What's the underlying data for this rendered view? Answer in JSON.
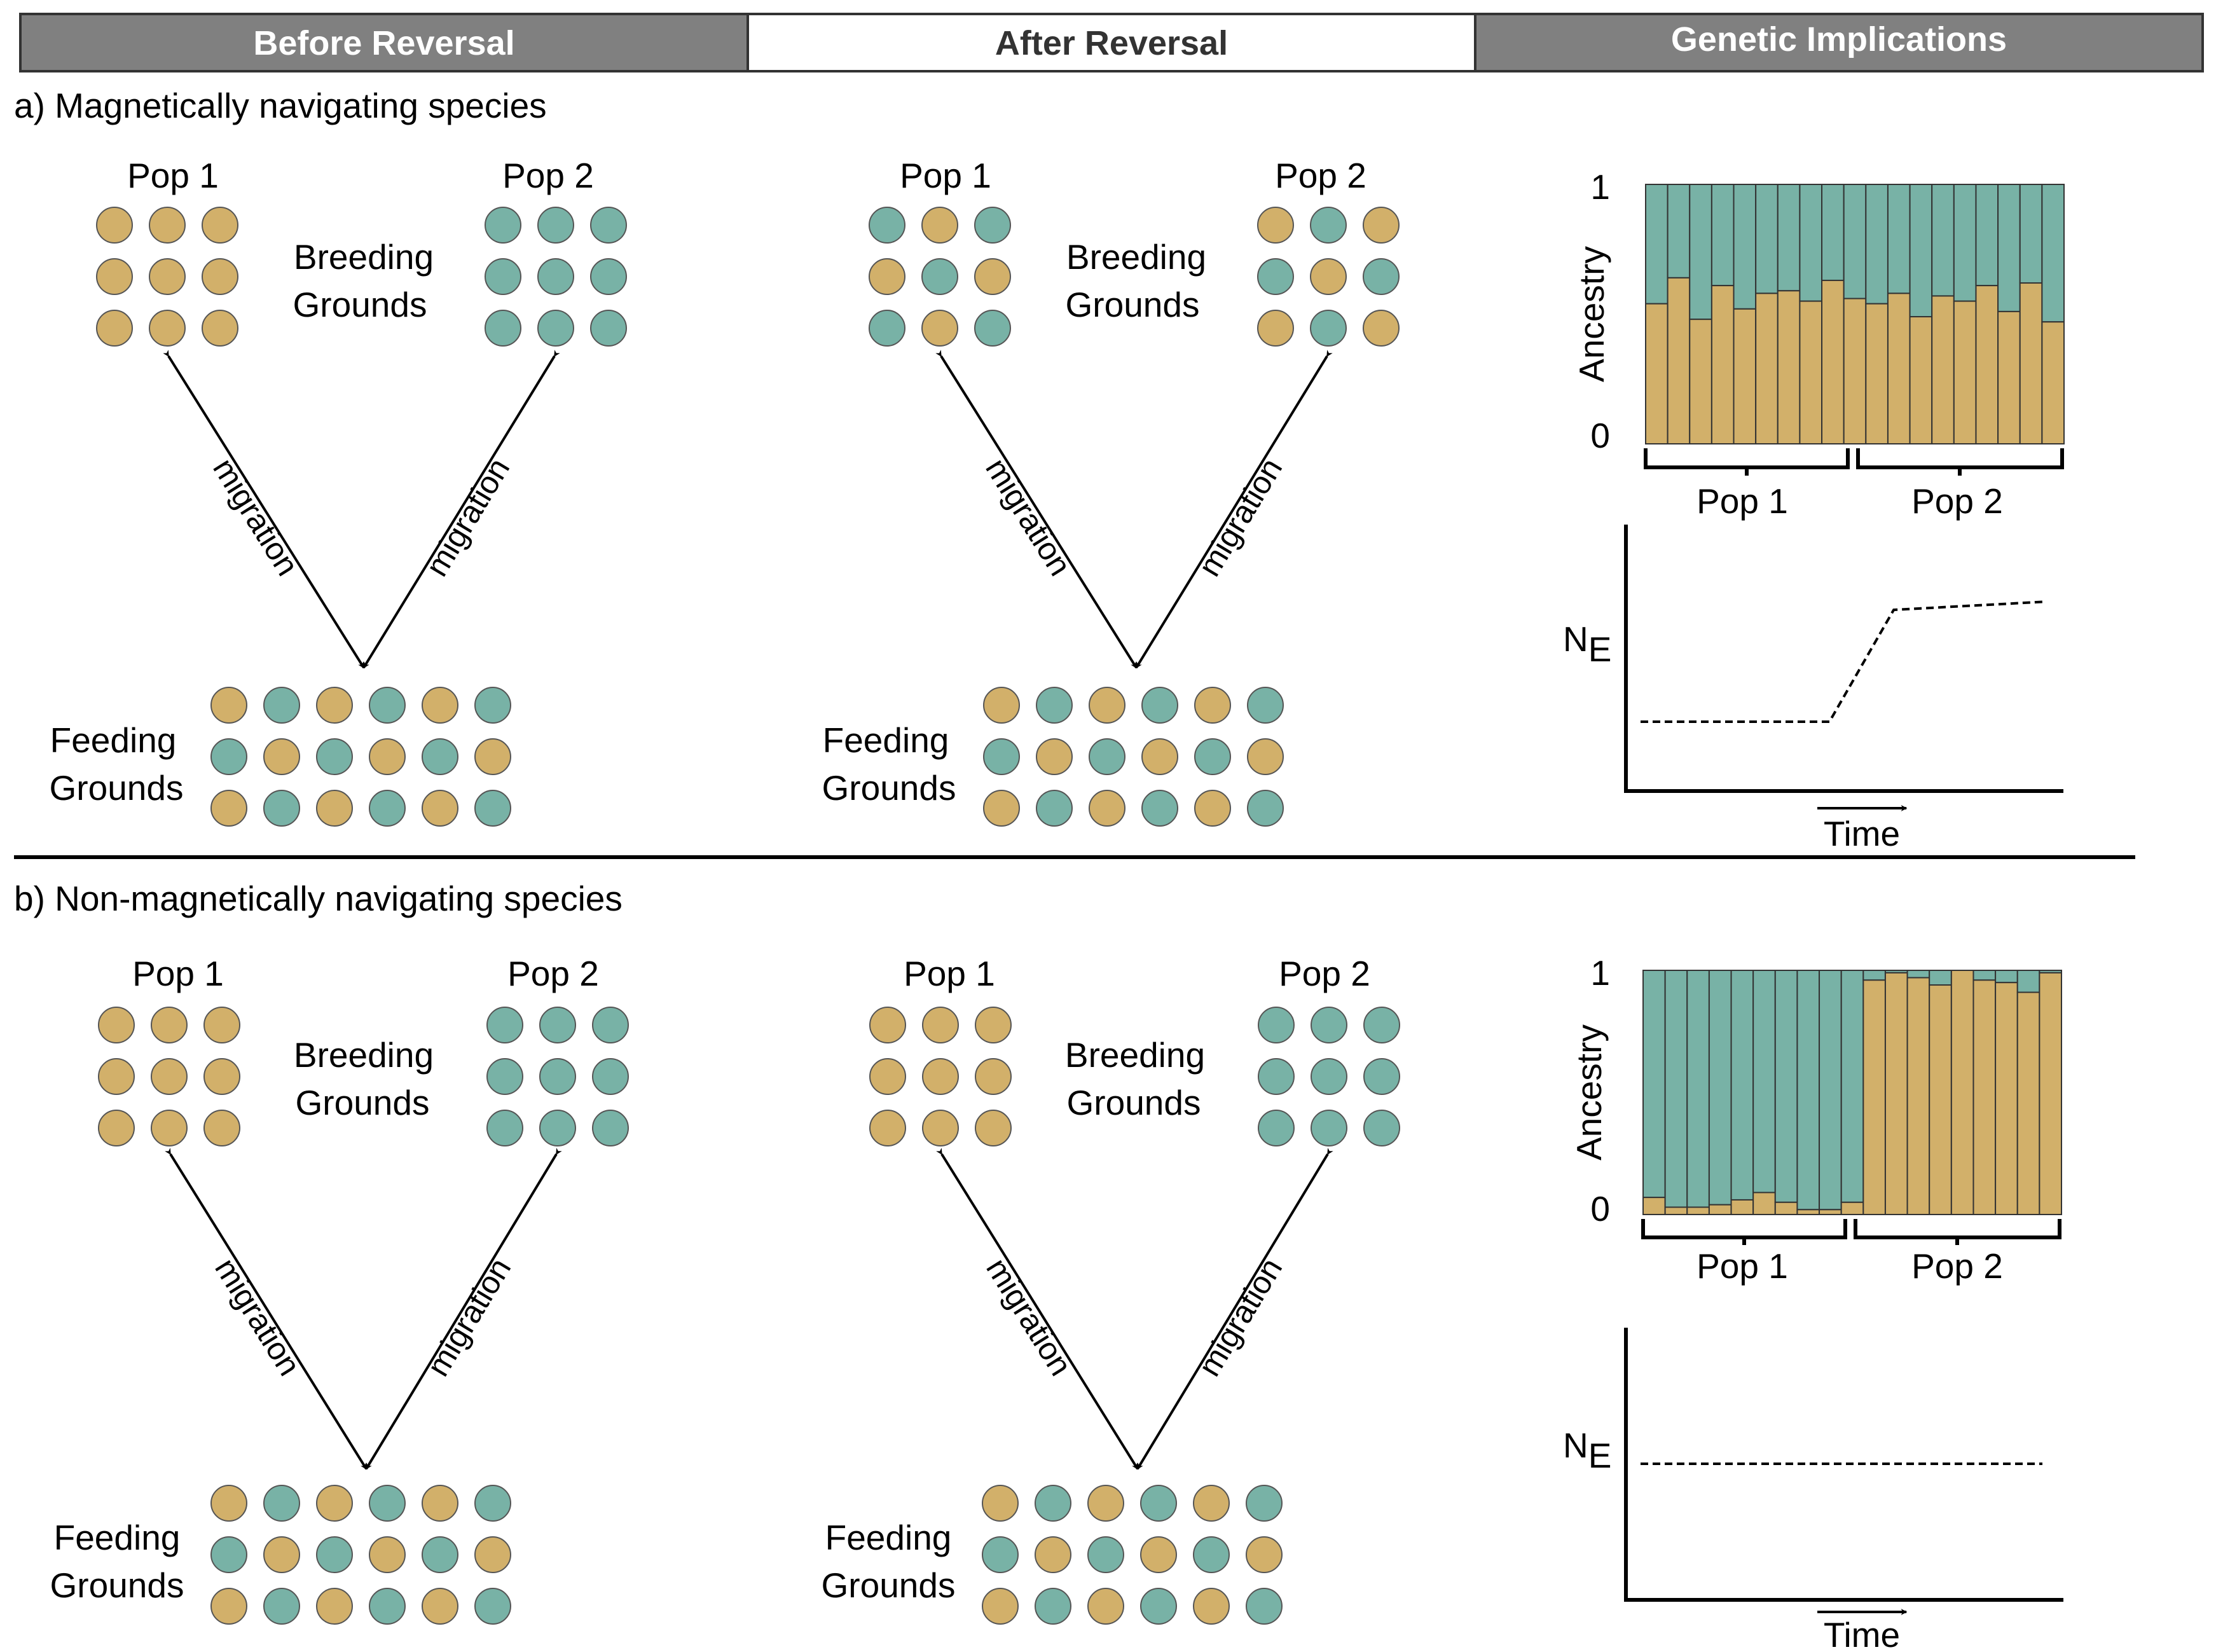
{
  "headers": [
    "Before Reversal",
    "After Reversal",
    "Genetic Implications"
  ],
  "colors": {
    "gold": "#D2B06A",
    "teal": "#78B2A6",
    "header_dark": "#808080",
    "header_light": "#ffffff",
    "stroke": "#555555"
  },
  "labels": {
    "pop1": "Pop 1",
    "pop2": "Pop 2",
    "breeding": [
      "Breeding",
      "Grounds"
    ],
    "feeding": [
      "Feeding",
      "Grounds"
    ],
    "migration": "migration",
    "ancestry": "Ancestry",
    "ne_main": "N",
    "ne_sub": "E",
    "time": "Time",
    "tick_one": "1",
    "tick_zero": "0"
  },
  "panels": [
    {
      "label": "a)  Magnetically navigating species",
      "before": {
        "pop1": [
          "g",
          "g",
          "g",
          "g",
          "g",
          "g",
          "g",
          "g",
          "g"
        ],
        "pop2": [
          "t",
          "t",
          "t",
          "t",
          "t",
          "t",
          "t",
          "t",
          "t"
        ],
        "feeding": [
          "g",
          "t",
          "g",
          "t",
          "g",
          "t",
          "t",
          "g",
          "t",
          "g",
          "t",
          "g",
          "g",
          "t",
          "g",
          "t",
          "g",
          "t"
        ]
      },
      "after": {
        "pop1": [
          "t",
          "g",
          "t",
          "g",
          "t",
          "g",
          "t",
          "g",
          "t"
        ],
        "pop2": [
          "g",
          "t",
          "g",
          "t",
          "g",
          "t",
          "g",
          "t",
          "g"
        ],
        "feeding": [
          "g",
          "t",
          "g",
          "t",
          "g",
          "t",
          "t",
          "g",
          "t",
          "g",
          "t",
          "g",
          "g",
          "t",
          "g",
          "t",
          "g",
          "t"
        ]
      },
      "chart_data": {
        "type": "bar",
        "ylabel": "Ancestry",
        "ylim": [
          0,
          1
        ],
        "yticks": [
          "0",
          "1"
        ],
        "groups": [
          "Pop 1",
          "Pop 2"
        ],
        "series": [
          {
            "color": "gold",
            "values": [
              0.54,
              0.64,
              0.48,
              0.61,
              0.52,
              0.58,
              0.59,
              0.55,
              0.63,
              0.56,
              0.54,
              0.58,
              0.49,
              0.57,
              0.55,
              0.61,
              0.51,
              0.62,
              0.47
            ]
          },
          {
            "color": "teal",
            "values": [
              0.46,
              0.36,
              0.52,
              0.39,
              0.48,
              0.42,
              0.41,
              0.45,
              0.37,
              0.44,
              0.46,
              0.42,
              0.51,
              0.43,
              0.45,
              0.39,
              0.49,
              0.38,
              0.53
            ]
          }
        ],
        "ne_line": {
          "type": "line",
          "xlabel": "Time",
          "ylabel": "NE",
          "x": [
            0,
            0.47,
            0.63,
            1
          ],
          "y": [
            0.26,
            0.26,
            0.68,
            0.71
          ]
        }
      }
    },
    {
      "label": "b)  Non-magnetically navigating species",
      "before": {
        "pop1": [
          "g",
          "g",
          "g",
          "g",
          "g",
          "g",
          "g",
          "g",
          "g"
        ],
        "pop2": [
          "t",
          "t",
          "t",
          "t",
          "t",
          "t",
          "t",
          "t",
          "t"
        ],
        "feeding": [
          "g",
          "t",
          "g",
          "t",
          "g",
          "t",
          "t",
          "g",
          "t",
          "g",
          "t",
          "g",
          "g",
          "t",
          "g",
          "t",
          "g",
          "t"
        ]
      },
      "after": {
        "pop1": [
          "g",
          "g",
          "g",
          "g",
          "g",
          "g",
          "g",
          "g",
          "g"
        ],
        "pop2": [
          "t",
          "t",
          "t",
          "t",
          "t",
          "t",
          "t",
          "t",
          "t"
        ],
        "feeding": [
          "g",
          "t",
          "g",
          "t",
          "g",
          "t",
          "t",
          "g",
          "t",
          "g",
          "t",
          "g",
          "g",
          "t",
          "g",
          "t",
          "g",
          "t"
        ]
      },
      "chart_data": {
        "type": "bar",
        "ylabel": "Ancestry",
        "ylim": [
          0,
          1
        ],
        "yticks": [
          "0",
          "1"
        ],
        "groups": [
          "Pop 1",
          "Pop 2"
        ],
        "series": [
          {
            "color": "gold",
            "values": [
              0.07,
              0.03,
              0.03,
              0.04,
              0.06,
              0.09,
              0.05,
              0.02,
              0.02,
              0.05,
              0.96,
              0.99,
              0.97,
              0.94,
              1.0,
              0.96,
              0.95,
              0.91,
              0.99
            ]
          },
          {
            "color": "teal",
            "values": [
              0.93,
              0.97,
              0.97,
              0.96,
              0.94,
              0.91,
              0.95,
              0.98,
              0.98,
              0.95,
              0.04,
              0.01,
              0.03,
              0.06,
              0.0,
              0.04,
              0.05,
              0.09,
              0.01
            ]
          }
        ],
        "ne_line": {
          "type": "line",
          "xlabel": "Time",
          "ylabel": "NE",
          "x": [
            0,
            1
          ],
          "y": [
            0.5,
            0.5
          ]
        }
      }
    }
  ]
}
